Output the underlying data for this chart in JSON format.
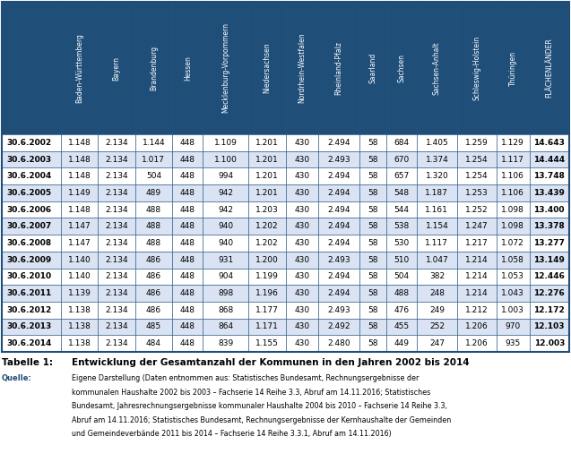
{
  "headers": [
    "",
    "Baden-Württemberg",
    "Bayern",
    "Brandenburg",
    "Hessen",
    "Mecklenburg-Vorpommern",
    "Niedersachsen",
    "Nordrhein-Westfalen",
    "Rheinland-Pfalz",
    "Saarland",
    "Sachsen",
    "Sachsen-Anhalt",
    "Schleswig-Holstein",
    "Thüringen",
    "FLÄCHENLÄNDER"
  ],
  "rows": [
    [
      "30.6.2002",
      "1.148",
      "2.134",
      "1.144",
      "448",
      "1.109",
      "1.201",
      "430",
      "2.494",
      "58",
      "684",
      "1.405",
      "1.259",
      "1.129",
      "14.643"
    ],
    [
      "30.6.2003",
      "1.148",
      "2.134",
      "1.017",
      "448",
      "1.100",
      "1.201",
      "430",
      "2.493",
      "58",
      "670",
      "1.374",
      "1.254",
      "1.117",
      "14.444"
    ],
    [
      "30.6.2004",
      "1.148",
      "2.134",
      "504",
      "448",
      "994",
      "1.201",
      "430",
      "2.494",
      "58",
      "657",
      "1.320",
      "1.254",
      "1.106",
      "13.748"
    ],
    [
      "30.6.2005",
      "1.149",
      "2.134",
      "489",
      "448",
      "942",
      "1.201",
      "430",
      "2.494",
      "58",
      "548",
      "1.187",
      "1.253",
      "1.106",
      "13.439"
    ],
    [
      "30.6.2006",
      "1.148",
      "2.134",
      "488",
      "448",
      "942",
      "1.203",
      "430",
      "2.494",
      "58",
      "544",
      "1.161",
      "1.252",
      "1.098",
      "13.400"
    ],
    [
      "30.6.2007",
      "1.147",
      "2.134",
      "488",
      "448",
      "940",
      "1.202",
      "430",
      "2.494",
      "58",
      "538",
      "1.154",
      "1.247",
      "1.098",
      "13.378"
    ],
    [
      "30.6.2008",
      "1.147",
      "2.134",
      "488",
      "448",
      "940",
      "1.202",
      "430",
      "2.494",
      "58",
      "530",
      "1.117",
      "1.217",
      "1.072",
      "13.277"
    ],
    [
      "30.6.2009",
      "1.140",
      "2.134",
      "486",
      "448",
      "931",
      "1.200",
      "430",
      "2.493",
      "58",
      "510",
      "1.047",
      "1.214",
      "1.058",
      "13.149"
    ],
    [
      "30.6.2010",
      "1.140",
      "2.134",
      "486",
      "448",
      "904",
      "1.199",
      "430",
      "2.494",
      "58",
      "504",
      "382",
      "1.214",
      "1.053",
      "12.446"
    ],
    [
      "30.6.2011",
      "1.139",
      "2.134",
      "486",
      "448",
      "898",
      "1.196",
      "430",
      "2.494",
      "58",
      "488",
      "248",
      "1.214",
      "1.043",
      "12.276"
    ],
    [
      "30.6.2012",
      "1.138",
      "2.134",
      "486",
      "448",
      "868",
      "1.177",
      "430",
      "2.493",
      "58",
      "476",
      "249",
      "1.212",
      "1.003",
      "12.172"
    ],
    [
      "30.6.2013",
      "1.138",
      "2.134",
      "485",
      "448",
      "864",
      "1.171",
      "430",
      "2.492",
      "58",
      "455",
      "252",
      "1.206",
      "970",
      "12.103"
    ],
    [
      "30.6.2014",
      "1.138",
      "2.134",
      "484",
      "448",
      "839",
      "1.155",
      "430",
      "2.480",
      "58",
      "449",
      "247",
      "1.206",
      "935",
      "12.003"
    ]
  ],
  "header_bg": "#1F4E79",
  "header_text": "#FFFFFF",
  "row_bg_odd": "#FFFFFF",
  "row_bg_even": "#DAE3F3",
  "border_color": "#1F4E79",
  "footer_table_label": "Tabelle 1:",
  "footer_table_title": "Entwicklung der Gesamtanzahl der Kommunen in den Jahren 2002 bis 2014",
  "footer_source_label": "Quelle:",
  "footer_source_lines": [
    "Eigene Darstellung (Daten entnommen aus: Statistisches Bundesamt, Rechnungsergebnisse der",
    "kommunalen Haushalte 2002 bis 2003 – Fachserie 14 Reihe 3.3, Abruf am 14.11.2016; Statistisches",
    "Bundesamt, Jahresrechnungsergebnisse kommunaler Haushalte 2004 bis 2010 – Fachserie 14 Reihe 3.3,",
    "Abruf am 14.11.2016; Statistisches Bundesamt, Rechnungsergebnisse der Kernhaushalte der Gemeinden",
    "und Gemeindeverbände 2011 bis 2014 – Fachserie 14 Reihe 3.3.1, Abruf am 14.11.2016)"
  ],
  "col_widths_rel": [
    1.3,
    0.82,
    0.82,
    0.82,
    0.68,
    1.0,
    0.82,
    0.72,
    0.92,
    0.58,
    0.68,
    0.88,
    0.88,
    0.72,
    0.88
  ]
}
